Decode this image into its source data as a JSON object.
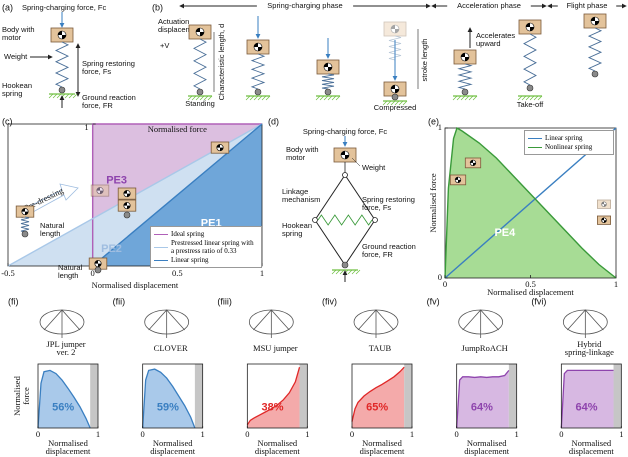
{
  "panel_a": {
    "label": "(a)",
    "charging": "Spring-charging force, Fc",
    "body": [
      "Body with",
      "motor"
    ],
    "weight": "Weight",
    "restoring": [
      "Spring restoring",
      "force, Fs"
    ],
    "hookean": [
      "Hookean",
      "spring"
    ],
    "ground": [
      "Ground reaction",
      "force, FR"
    ]
  },
  "panel_b": {
    "label": "(b)",
    "phases": [
      "Spring-charging phase",
      "Acceleration phase",
      "Flight phase"
    ],
    "actuation": [
      "Actuation",
      "displacement"
    ],
    "v": "+V",
    "char_length": "Characteristic length, d",
    "standing": "Standing",
    "stroke": "stroke length",
    "compressed": "Compressed",
    "accelerates": [
      "Accelerates",
      "upward"
    ],
    "takeoff": "Take-off"
  },
  "panel_c": {
    "label": "(c)",
    "type": "line",
    "ylabel": "Normalised force",
    "xlabel": "Normalised displacement",
    "xlim": [
      -0.5,
      1
    ],
    "ylim": [
      0,
      1
    ],
    "xticks": [
      -0.5,
      0,
      0.5,
      1
    ],
    "yticks": [
      1
    ],
    "series": [
      {
        "name": "Ideal spring",
        "color": "#b060b8",
        "x": [
          0,
          0,
          1
        ],
        "values": [
          0,
          1,
          1
        ]
      },
      {
        "name": "Prestressed linear spring with a prestress ratio of 0.33",
        "color": "#a9c8e8",
        "x": [
          -0.5,
          1
        ],
        "values": [
          0,
          1
        ]
      },
      {
        "name": "Linear spring",
        "color": "#3a7fc1",
        "x": [
          0,
          1
        ],
        "values": [
          0,
          1
        ]
      }
    ],
    "regions": [
      "PE1",
      "PE2",
      "PE3"
    ],
    "predressing": "Pre-dressing",
    "natural_length": [
      "Natural",
      "length"
    ]
  },
  "panel_d": {
    "label": "(d)",
    "charging": "Spring-charging force, Fc",
    "body": [
      "Body with",
      "motor"
    ],
    "weight": "Weight",
    "linkage": [
      "Linkage",
      "mechanism"
    ],
    "restoring": [
      "Spring restoring",
      "force, Fs"
    ],
    "hookean": [
      "Hookean",
      "spring"
    ],
    "ground": [
      "Ground reaction",
      "force, FR"
    ]
  },
  "panel_e": {
    "label": "(e)",
    "type": "line",
    "ylabel": "Normalised force",
    "xlabel": "Normalised displacement",
    "xlim": [
      0,
      1
    ],
    "ylim": [
      0,
      1
    ],
    "xticks": [
      0,
      0.5,
      1
    ],
    "yticks": [
      0,
      1
    ],
    "legend": "top-right",
    "series": [
      {
        "name": "Linear spring",
        "color": "#3a7fc1",
        "x": [
          0,
          1
        ],
        "values": [
          0,
          1
        ]
      },
      {
        "name": "Nonlinear spring",
        "color": "#3a9a3a",
        "x": [
          0,
          0.02,
          0.05,
          0.07,
          0.1,
          0.2,
          0.3,
          0.4,
          0.5,
          0.6,
          0.7,
          0.8,
          0.9,
          1
        ],
        "values": [
          0,
          0.6,
          0.93,
          1,
          0.98,
          0.9,
          0.8,
          0.68,
          0.56,
          0.44,
          0.32,
          0.2,
          0.09,
          0
        ]
      }
    ],
    "region": "PE4"
  },
  "panel_f": {
    "type": "area",
    "ylabel": [
      "Normalised",
      "force"
    ],
    "xlabel": [
      "Normalised",
      "displacement"
    ],
    "xlim": [
      0,
      1
    ],
    "ylim": [
      0,
      1
    ],
    "xticks": [
      0,
      1
    ],
    "x": [
      0,
      0.05,
      0.1,
      0.2,
      0.3,
      0.4,
      0.5,
      0.6,
      0.7,
      0.8,
      0.87
    ],
    "charts": [
      {
        "label": "(fi)",
        "name": [
          "JPL jumper",
          "ver. 2"
        ],
        "efficiency": "56%",
        "color": "#3a7fc1",
        "fill": "#a9c9ea",
        "gray_from": 0.87,
        "values": [
          0,
          0.7,
          0.88,
          0.9,
          0.85,
          0.75,
          0.62,
          0.48,
          0.33,
          0.15,
          0
        ]
      },
      {
        "label": "(fii)",
        "name": [
          "CLOVER"
        ],
        "efficiency": "59%",
        "color": "#3a7fc1",
        "fill": "#a9c9ea",
        "gray_from": 0.87,
        "values": [
          0,
          0.75,
          0.9,
          0.92,
          0.87,
          0.78,
          0.65,
          0.5,
          0.35,
          0.17,
          0
        ]
      },
      {
        "label": "(fiii)",
        "name": [
          "MSU jumper"
        ],
        "efficiency": "38%",
        "color": "#e02828",
        "fill": "#f4aaaa",
        "gray_from": 0.87,
        "values": [
          0.05,
          0.12,
          0.15,
          0.2,
          0.25,
          0.3,
          0.36,
          0.44,
          0.55,
          0.72,
          0.95
        ]
      },
      {
        "label": "(fiv)",
        "name": [
          "TAUB"
        ],
        "efficiency": "65%",
        "color": "#e02828",
        "fill": "#f4aaaa",
        "gray_from": 0.87,
        "values": [
          0.1,
          0.3,
          0.4,
          0.5,
          0.57,
          0.63,
          0.68,
          0.74,
          0.8,
          0.88,
          0.95
        ]
      },
      {
        "label": "(fv)",
        "name": [
          "JumpRoACH"
        ],
        "efficiency": "64%",
        "color": "#8e44ad",
        "fill": "#d7b8e2",
        "gray_from": 0.87,
        "values": [
          0,
          0.75,
          0.8,
          0.8,
          0.79,
          0.8,
          0.79,
          0.8,
          0.8,
          0.82,
          0.9
        ]
      },
      {
        "label": "(fvi)",
        "name": [
          "Hybrid",
          "spring-linkage"
        ],
        "efficiency": "64%",
        "color": "#8e44ad",
        "fill": "#d7b8e2",
        "gray_from": 0.87,
        "values": [
          0,
          0.85,
          0.9,
          0.9,
          0.9,
          0.9,
          0.9,
          0.9,
          0.9,
          0.9,
          0.9
        ]
      }
    ]
  }
}
